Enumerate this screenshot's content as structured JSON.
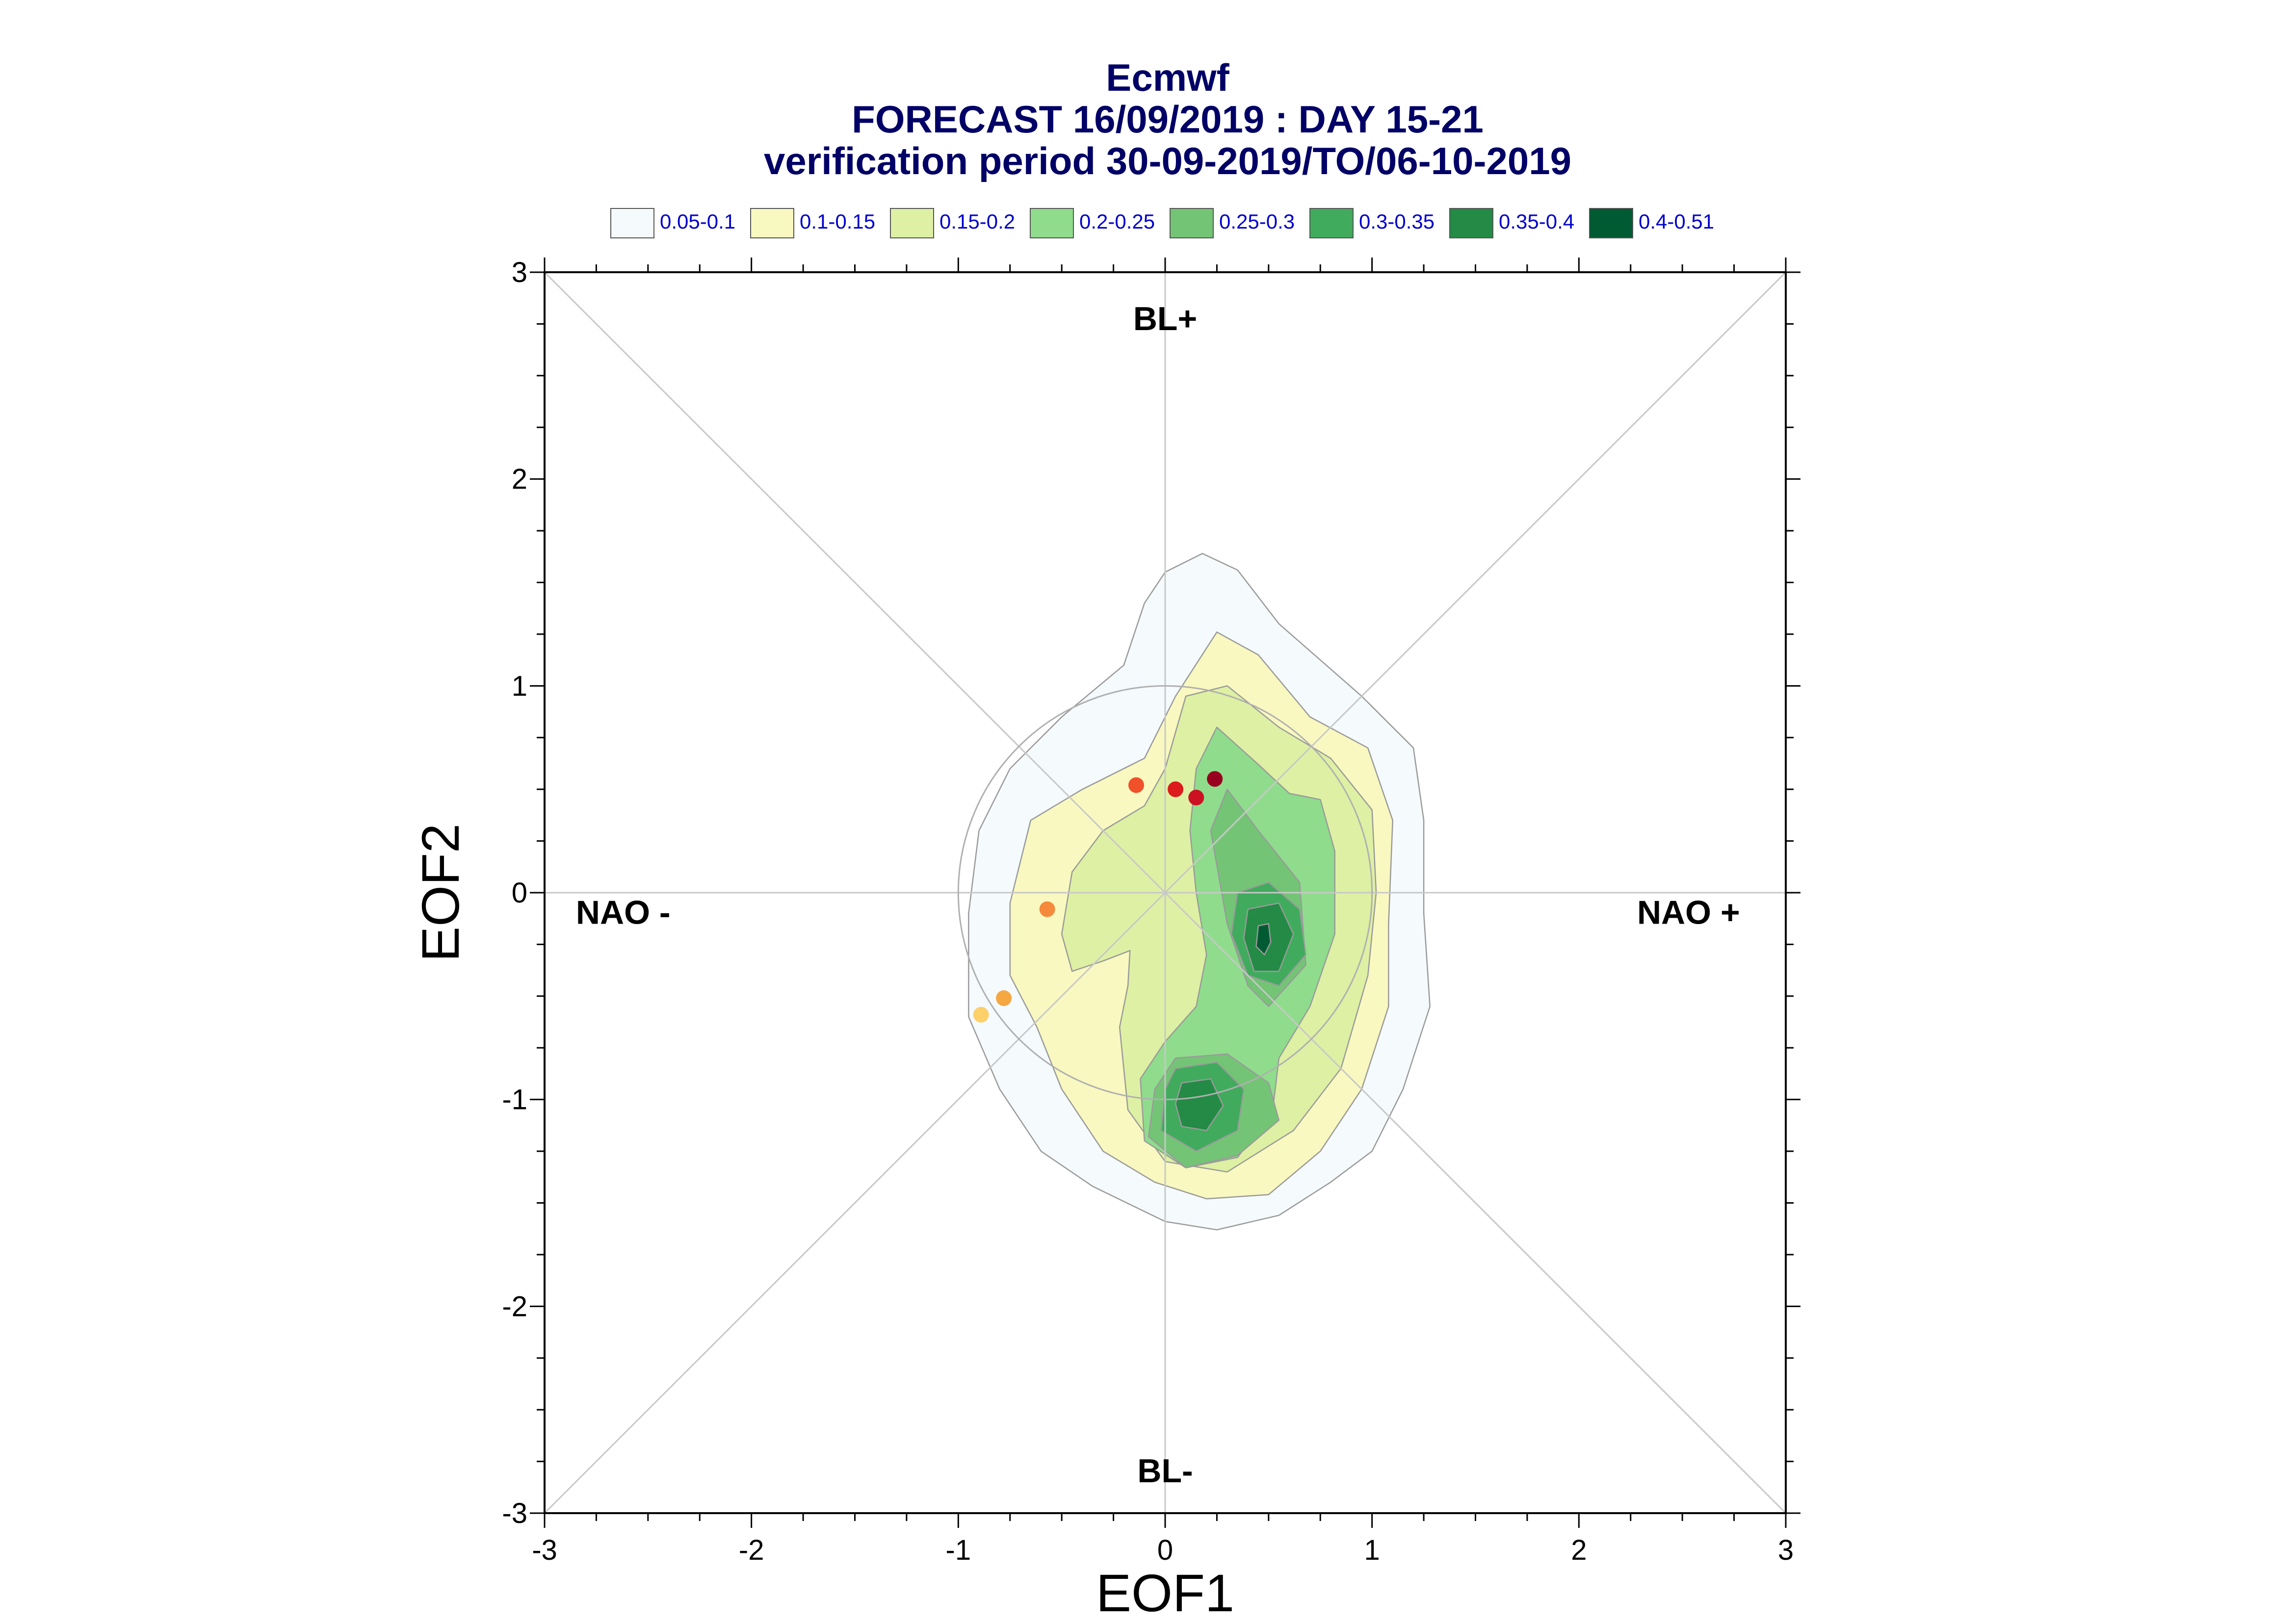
{
  "title": {
    "line1": "Ecmwf",
    "line2": "FORECAST 16/09/2019 : DAY 15-21",
    "line3": "verification period 30-09-2019/TO/06-10-2019"
  },
  "legend": [
    {
      "label": "0.05-0.1",
      "color": "#f5fafd"
    },
    {
      "label": "0.1-0.15",
      "color": "#f8f8c0"
    },
    {
      "label": "0.15-0.2",
      "color": "#def0a4"
    },
    {
      "label": "0.2-0.25",
      "color": "#8fdc8c"
    },
    {
      "label": "0.25-0.3",
      "color": "#74c476"
    },
    {
      "label": "0.3-0.35",
      "color": "#41ab5d"
    },
    {
      "label": "0.35-0.4",
      "color": "#238b45"
    },
    {
      "label": "0.4-0.51",
      "color": "#005a32"
    }
  ],
  "chart_data": {
    "type": "scatter",
    "xlabel": "EOF1",
    "ylabel": "EOF2",
    "xlim": [
      -3,
      3
    ],
    "ylim": [
      -3,
      3
    ],
    "xticks": [
      "-3",
      "-2",
      "-1",
      "0",
      "1",
      "2",
      "3"
    ],
    "yticks": [
      "-3",
      "-2",
      "-1",
      "0",
      "1",
      "2",
      "3"
    ],
    "regime_labels": {
      "top": "BL+",
      "bottom": "BL-",
      "left": "NAO -",
      "right": "NAO +"
    },
    "reference_circle_radius": 1,
    "points": [
      {
        "x": 0.24,
        "y": 0.55,
        "color": "#99001f"
      },
      {
        "x": 0.15,
        "y": 0.46,
        "color": "#cc1122"
      },
      {
        "x": 0.05,
        "y": 0.5,
        "color": "#dd1a1c"
      },
      {
        "x": -0.14,
        "y": 0.52,
        "color": "#f0502a"
      },
      {
        "x": -0.57,
        "y": -0.08,
        "color": "#f58a3c"
      },
      {
        "x": -0.78,
        "y": -0.51,
        "color": "#f5a742"
      },
      {
        "x": -0.89,
        "y": -0.59,
        "color": "#fdd06a"
      }
    ],
    "density_contours": [
      {
        "level": "0.05-0.1",
        "color": "#f5fafd",
        "polygons": [
          [
            [
              0.18,
              1.64
            ],
            [
              0.35,
              1.56
            ],
            [
              0.55,
              1.3
            ],
            [
              0.95,
              0.95
            ],
            [
              1.2,
              0.7
            ],
            [
              1.25,
              0.35
            ],
            [
              1.25,
              -0.1
            ],
            [
              1.28,
              -0.55
            ],
            [
              1.15,
              -0.95
            ],
            [
              1.0,
              -1.25
            ],
            [
              0.8,
              -1.4
            ],
            [
              0.55,
              -1.56
            ],
            [
              0.25,
              -1.63
            ],
            [
              0.0,
              -1.59
            ],
            [
              -0.35,
              -1.42
            ],
            [
              -0.6,
              -1.25
            ],
            [
              -0.8,
              -0.95
            ],
            [
              -0.95,
              -0.6
            ],
            [
              -0.95,
              -0.1
            ],
            [
              -0.9,
              0.3
            ],
            [
              -0.75,
              0.6
            ],
            [
              -0.5,
              0.85
            ],
            [
              -0.2,
              1.1
            ],
            [
              -0.1,
              1.4
            ],
            [
              0.0,
              1.55
            ]
          ]
        ]
      },
      {
        "level": "0.1-0.15",
        "color": "#f8f8c0",
        "polygons": [
          [
            [
              0.25,
              1.26
            ],
            [
              0.45,
              1.15
            ],
            [
              0.7,
              0.85
            ],
            [
              0.98,
              0.7
            ],
            [
              1.1,
              0.35
            ],
            [
              1.08,
              -0.15
            ],
            [
              1.08,
              -0.55
            ],
            [
              0.95,
              -0.95
            ],
            [
              0.75,
              -1.25
            ],
            [
              0.5,
              -1.46
            ],
            [
              0.2,
              -1.48
            ],
            [
              -0.05,
              -1.4
            ],
            [
              -0.3,
              -1.25
            ],
            [
              -0.5,
              -0.95
            ],
            [
              -0.62,
              -0.65
            ],
            [
              -0.75,
              -0.4
            ],
            [
              -0.75,
              -0.05
            ],
            [
              -0.65,
              0.35
            ],
            [
              -0.4,
              0.5
            ],
            [
              -0.1,
              0.65
            ],
            [
              0.05,
              0.95
            ]
          ]
        ]
      },
      {
        "level": "0.15-0.2",
        "color": "#def0a4",
        "polygons": [
          [
            [
              0.3,
              1.0
            ],
            [
              0.55,
              0.8
            ],
            [
              0.8,
              0.65
            ],
            [
              1.0,
              0.4
            ],
            [
              1.02,
              0.0
            ],
            [
              0.98,
              -0.4
            ],
            [
              0.85,
              -0.85
            ],
            [
              0.62,
              -1.15
            ],
            [
              0.3,
              -1.35
            ],
            [
              0.0,
              -1.3
            ],
            [
              -0.18,
              -1.05
            ],
            [
              -0.22,
              -0.65
            ],
            [
              -0.18,
              -0.45
            ],
            [
              -0.17,
              -0.28
            ],
            [
              -0.3,
              -0.33
            ],
            [
              -0.45,
              -0.38
            ],
            [
              -0.5,
              -0.2
            ],
            [
              -0.45,
              0.1
            ],
            [
              -0.3,
              0.3
            ],
            [
              -0.1,
              0.42
            ],
            [
              0.0,
              0.6
            ],
            [
              0.1,
              0.95
            ]
          ]
        ]
      },
      {
        "level": "0.2-0.25",
        "color": "#8fdc8c",
        "polygons": [
          [
            [
              0.25,
              0.8
            ],
            [
              0.45,
              0.62
            ],
            [
              0.6,
              0.48
            ],
            [
              0.75,
              0.45
            ],
            [
              0.82,
              0.2
            ],
            [
              0.82,
              -0.2
            ],
            [
              0.7,
              -0.55
            ],
            [
              0.55,
              -0.8
            ],
            [
              0.52,
              -1.05
            ],
            [
              0.35,
              -1.28
            ],
            [
              0.1,
              -1.33
            ],
            [
              -0.1,
              -1.2
            ],
            [
              -0.12,
              -0.9
            ],
            [
              0.0,
              -0.72
            ],
            [
              0.15,
              -0.55
            ],
            [
              0.2,
              -0.3
            ],
            [
              0.15,
              0.0
            ],
            [
              0.12,
              0.3
            ],
            [
              0.15,
              0.6
            ]
          ]
        ]
      },
      {
        "level": "0.25-0.3",
        "color": "#74c476",
        "polygons": [
          [
            [
              0.3,
              0.5
            ],
            [
              0.45,
              0.3
            ],
            [
              0.65,
              0.05
            ],
            [
              0.68,
              -0.35
            ],
            [
              0.5,
              -0.55
            ],
            [
              0.4,
              -0.45
            ],
            [
              0.3,
              -0.15
            ],
            [
              0.22,
              0.3
            ]
          ],
          [
            [
              0.05,
              -0.8
            ],
            [
              0.3,
              -0.78
            ],
            [
              0.5,
              -0.92
            ],
            [
              0.55,
              -1.1
            ],
            [
              0.35,
              -1.27
            ],
            [
              0.1,
              -1.33
            ],
            [
              -0.08,
              -1.18
            ],
            [
              -0.05,
              -0.95
            ]
          ]
        ]
      },
      {
        "level": "0.3-0.35",
        "color": "#41ab5d",
        "polygons": [
          [
            [
              0.35,
              0.0
            ],
            [
              0.5,
              0.05
            ],
            [
              0.65,
              -0.08
            ],
            [
              0.68,
              -0.3
            ],
            [
              0.55,
              -0.45
            ],
            [
              0.4,
              -0.4
            ],
            [
              0.32,
              -0.2
            ]
          ],
          [
            [
              0.05,
              -0.85
            ],
            [
              0.25,
              -0.82
            ],
            [
              0.38,
              -0.95
            ],
            [
              0.35,
              -1.15
            ],
            [
              0.15,
              -1.25
            ],
            [
              -0.02,
              -1.15
            ],
            [
              0.0,
              -0.95
            ]
          ]
        ]
      },
      {
        "level": "0.35-0.4",
        "color": "#238b45",
        "polygons": [
          [
            [
              0.4,
              -0.08
            ],
            [
              0.55,
              -0.05
            ],
            [
              0.62,
              -0.2
            ],
            [
              0.55,
              -0.38
            ],
            [
              0.43,
              -0.38
            ],
            [
              0.38,
              -0.22
            ]
          ],
          [
            [
              0.08,
              -0.92
            ],
            [
              0.22,
              -0.9
            ],
            [
              0.28,
              -1.03
            ],
            [
              0.2,
              -1.15
            ],
            [
              0.08,
              -1.13
            ],
            [
              0.05,
              -1.02
            ]
          ]
        ]
      },
      {
        "level": "0.4-0.51",
        "color": "#005a32",
        "polygons": [
          [
            [
              0.45,
              -0.16
            ],
            [
              0.5,
              -0.15
            ],
            [
              0.51,
              -0.24
            ],
            [
              0.48,
              -0.3
            ],
            [
              0.44,
              -0.26
            ]
          ]
        ]
      }
    ]
  }
}
